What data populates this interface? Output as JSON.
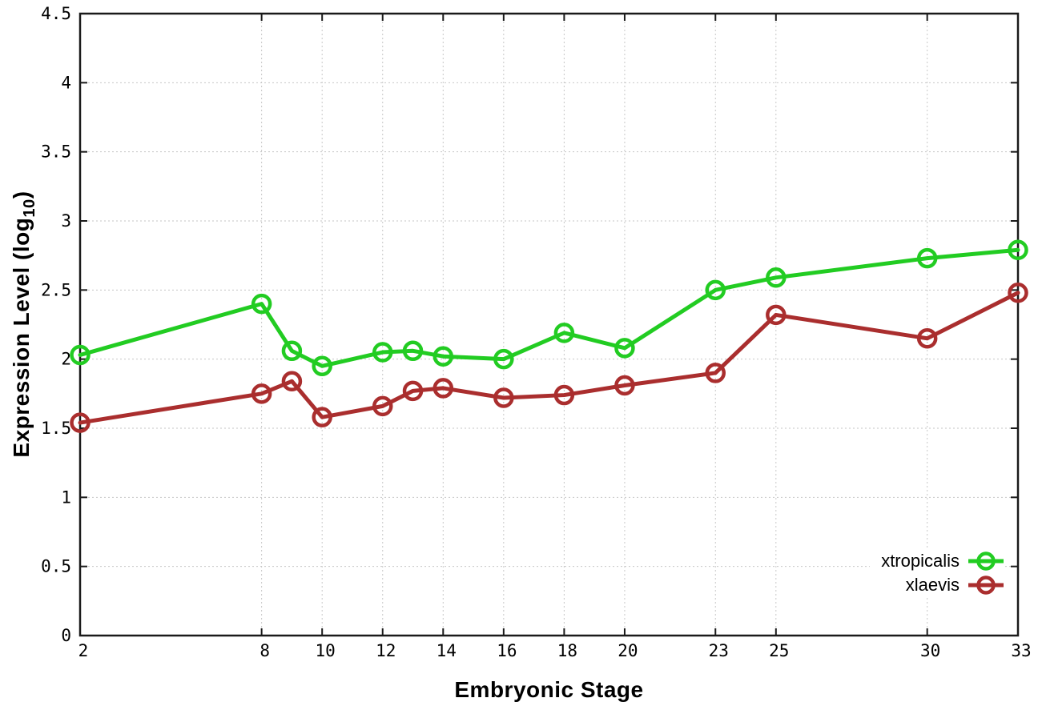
{
  "chart_data": {
    "type": "line",
    "title": "",
    "xlabel": "Embryonic Stage",
    "ylabel": {
      "prefix": "Expression Level (log",
      "subscript": "10",
      "suffix": ")"
    },
    "x": [
      2,
      8,
      9,
      10,
      12,
      13,
      14,
      16,
      18,
      20,
      23,
      25,
      30,
      33
    ],
    "series": [
      {
        "name": "xtropicalis",
        "color": "#22cc22",
        "marker": "open-circle",
        "values": [
          2.03,
          2.4,
          2.06,
          1.95,
          2.05,
          2.06,
          2.02,
          2.0,
          2.19,
          2.08,
          2.5,
          2.59,
          2.73,
          2.79
        ]
      },
      {
        "name": "xlaevis",
        "color": "#aa2e2e",
        "marker": "open-circle",
        "values": [
          1.54,
          1.75,
          1.84,
          1.58,
          1.66,
          1.77,
          1.79,
          1.72,
          1.74,
          1.81,
          1.9,
          2.32,
          2.15,
          2.48
        ]
      }
    ],
    "xlim": [
      2,
      33
    ],
    "ylim": [
      0,
      4.5
    ],
    "xticks": {
      "values": [
        2,
        8,
        10,
        12,
        14,
        16,
        18,
        20,
        23,
        25,
        30,
        33
      ],
      "labels": [
        "2",
        "8",
        "10",
        "12",
        "14",
        "16",
        "18",
        "20",
        "23",
        "25",
        "30",
        "33"
      ]
    },
    "yticks": {
      "values": [
        0,
        0.5,
        1,
        1.5,
        2,
        2.5,
        3,
        3.5,
        4,
        4.5
      ],
      "labels": [
        "0",
        "0.5",
        "1",
        "1.5",
        "2",
        "2.5",
        "3",
        "3.5",
        "4",
        "4.5"
      ]
    },
    "grid": true,
    "legend": {
      "position": "bottom-right-inside"
    }
  },
  "colors": {
    "background": "#ffffff",
    "grid": "#c6c6c6",
    "axis": "#1a1a1a",
    "text": "#000000"
  }
}
